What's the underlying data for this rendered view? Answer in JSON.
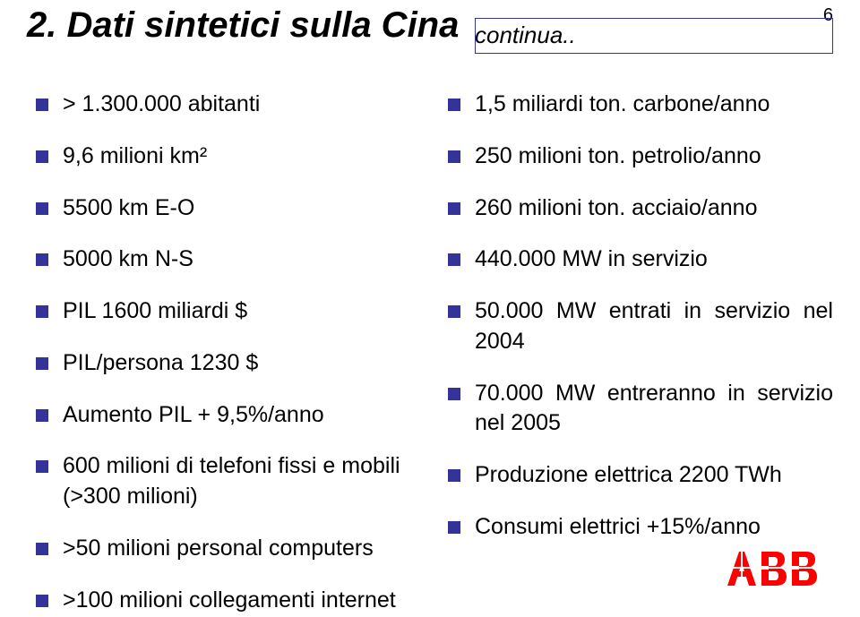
{
  "page_number": "6",
  "title": "2. Dati sintetici sulla Cina",
  "continua": "continua..",
  "left_items": [
    "> 1.300.000 abitanti",
    "9,6 milioni km²",
    "5500 km E-O",
    "5000 km N-S",
    "PIL 1600 miliardi $",
    "PIL/persona 1230 $",
    "Aumento PIL + 9,5%/anno",
    "600 milioni di telefoni fissi e mobili (>300 milioni)",
    ">50 milioni personal computers",
    ">100 milioni collegamenti internet"
  ],
  "right_items": [
    "1,5 miliardi ton. carbone/anno",
    "250 milioni ton. petrolio/anno",
    "260 milioni ton. acciaio/anno",
    "440.000 MW in servizio",
    "50.000 MW entrati in servizio nel 2004",
    "70.000 MW entreranno in servizio nel 2005",
    "Produzione elettrica 2200 TWh",
    "Consumi elettrici +15%/anno"
  ],
  "colors": {
    "bullet": "#333399",
    "text": "#000000",
    "logo_red": "#ff0000"
  }
}
